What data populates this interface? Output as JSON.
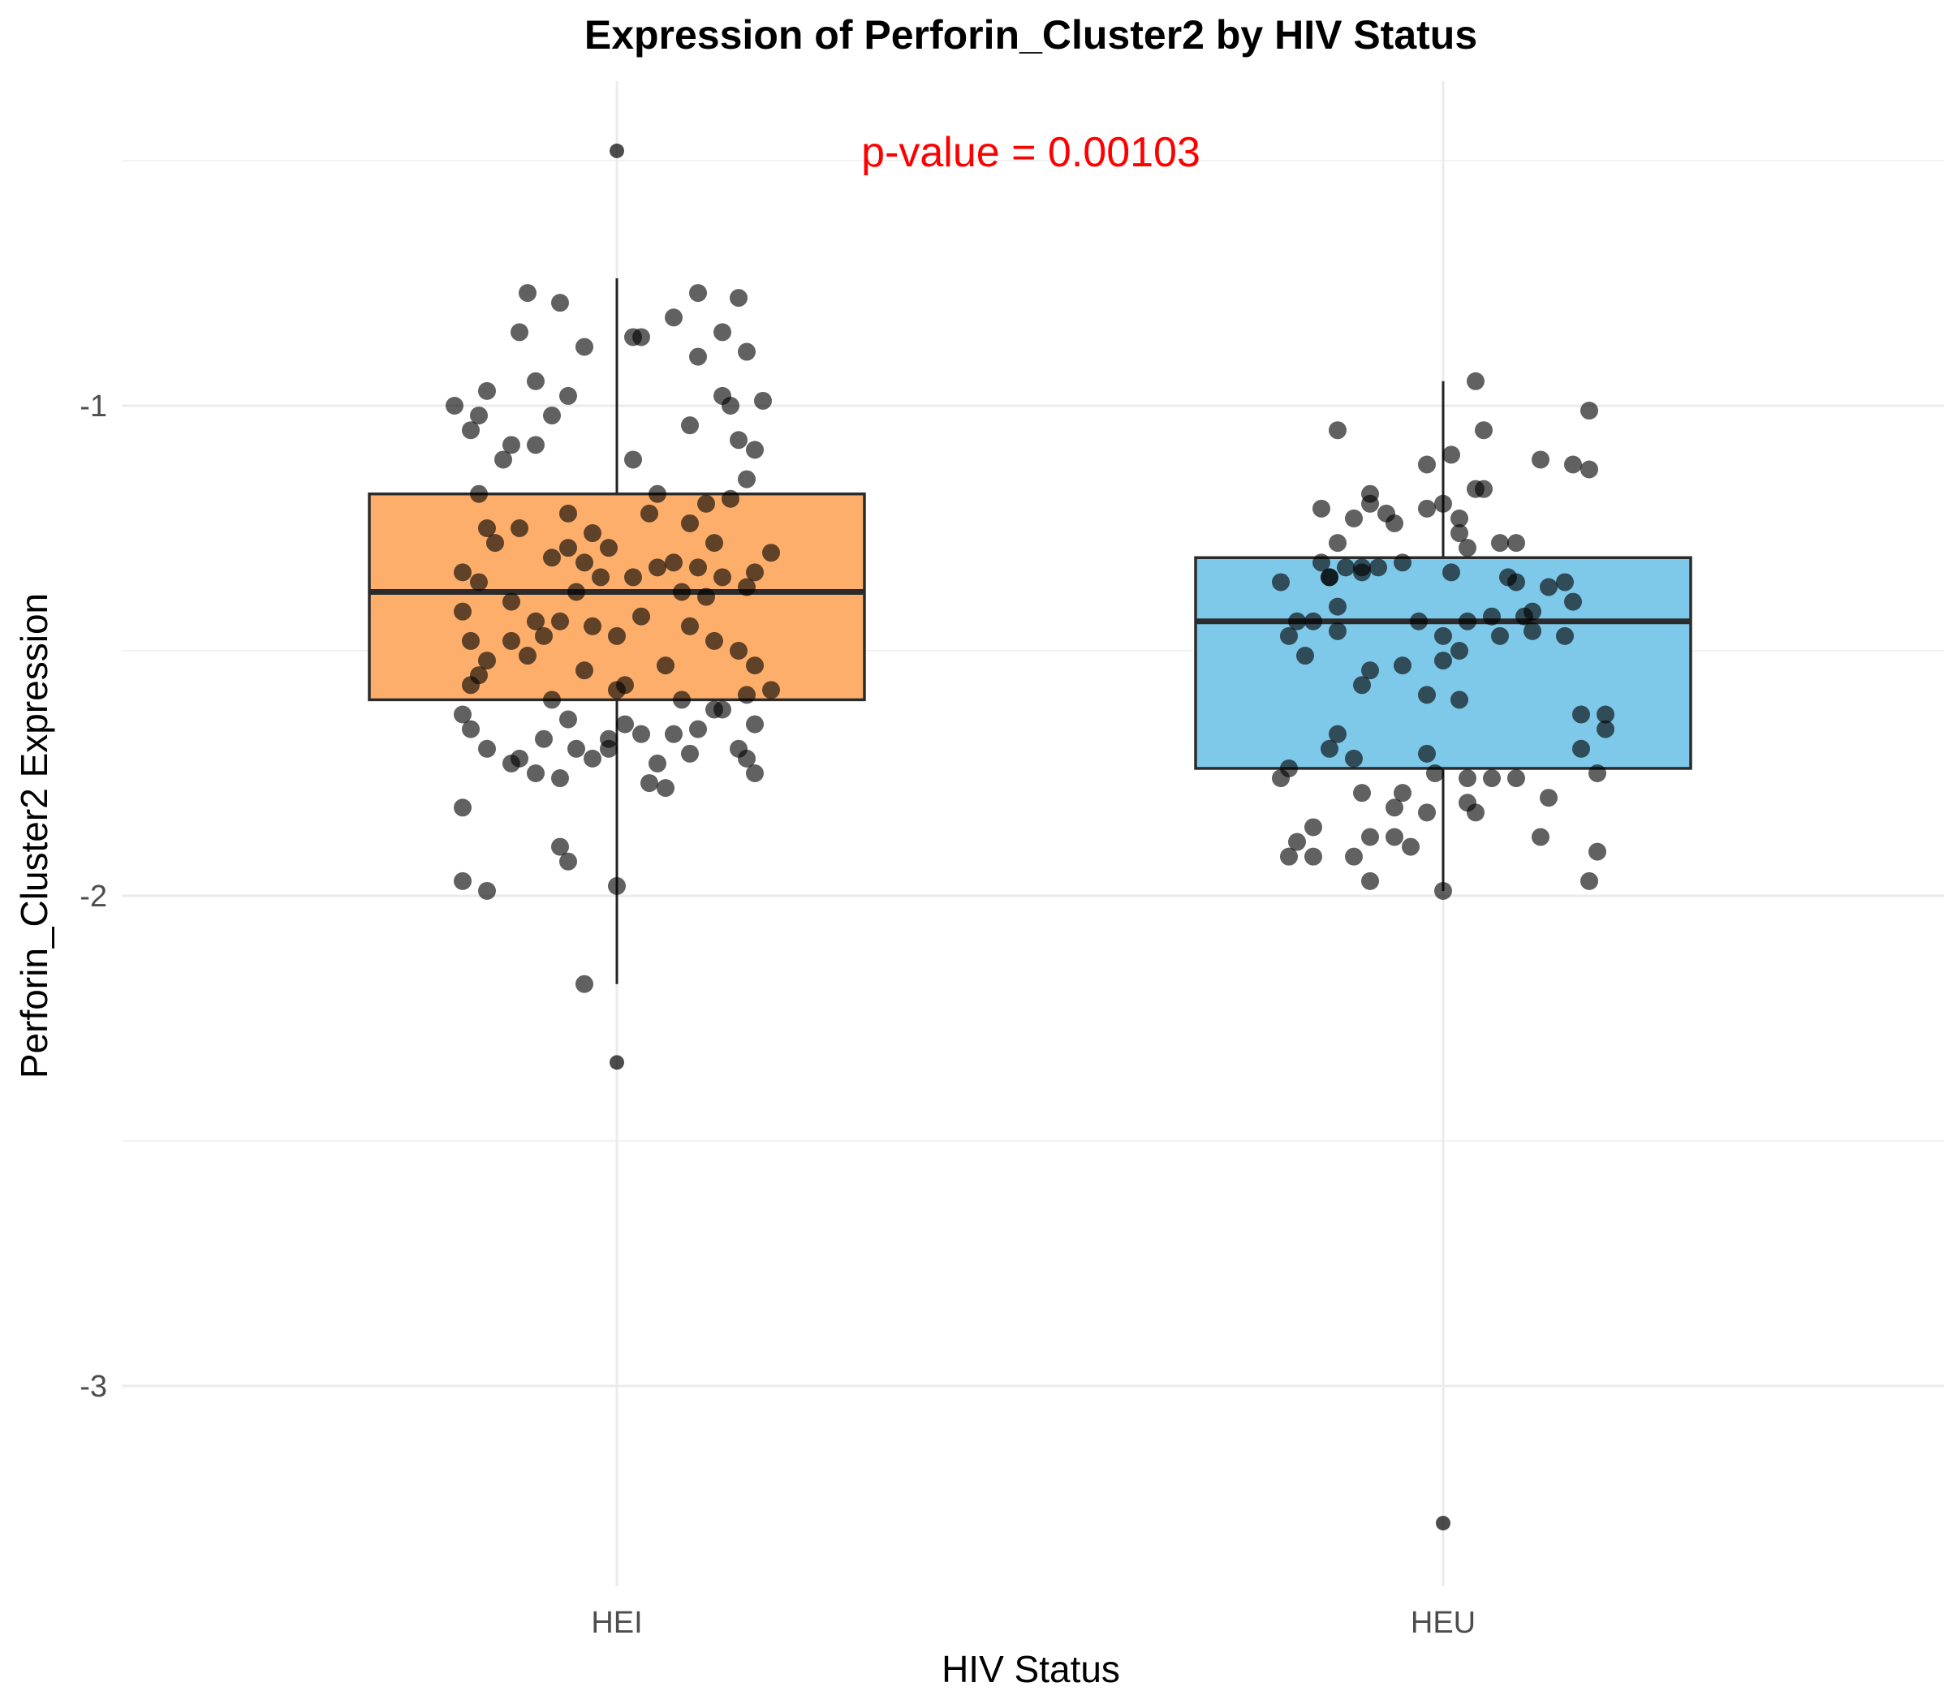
{
  "chart_data": {
    "type": "box",
    "title": "Expression of Perforin_Cluster2 by HIV Status",
    "xlabel": "HIV Status",
    "ylabel": "Perforin_Cluster2 Expression",
    "annotation": {
      "text": "p-value = 0.00103",
      "color": "#ff0000"
    },
    "categories": [
      "HEI",
      "HEU"
    ],
    "ylim": [
      -3.4,
      -0.42
    ],
    "yticks": [
      -3,
      -2,
      -1
    ],
    "ytick_labels": [
      "-3",
      "-2",
      "-1"
    ],
    "y_minor_gridlines": [
      -2.5,
      -1.5,
      -0.5
    ],
    "grid": true,
    "legend": "none",
    "series": [
      {
        "category": "HEI",
        "fill": "#fdae6b",
        "stats": {
          "whisker_low": -2.18,
          "q1": -1.6,
          "median": -1.38,
          "q3": -1.18,
          "whisker_high": -0.74
        },
        "outliers": [
          -0.48,
          -2.34
        ],
        "points": [
          [
            -0.2,
            -1.0
          ],
          [
            -0.18,
            -1.05
          ],
          [
            -0.16,
            -0.97
          ],
          [
            -0.12,
            -0.85
          ],
          [
            -0.11,
            -0.77
          ],
          [
            -0.07,
            -0.79
          ],
          [
            -0.04,
            -0.88
          ],
          [
            -0.1,
            -0.95
          ],
          [
            -0.06,
            -0.98
          ],
          [
            -0.08,
            -1.02
          ],
          [
            -0.13,
            -1.08
          ],
          [
            -0.14,
            -1.11
          ],
          [
            -0.17,
            -1.02
          ],
          [
            -0.1,
            -1.08
          ],
          [
            0.02,
            -0.86
          ],
          [
            0.03,
            -0.86
          ],
          [
            0.07,
            -0.82
          ],
          [
            0.1,
            -0.9
          ],
          [
            0.1,
            -0.77
          ],
          [
            0.15,
            -0.78
          ],
          [
            0.13,
            -0.85
          ],
          [
            0.16,
            -0.89
          ],
          [
            0.18,
            -0.99
          ],
          [
            0.13,
            -0.98
          ],
          [
            0.09,
            -1.04
          ],
          [
            0.14,
            -1.0
          ],
          [
            0.15,
            -1.07
          ],
          [
            0.17,
            -1.09
          ],
          [
            0.16,
            -1.15
          ],
          [
            0.02,
            -1.11
          ],
          [
            0.05,
            -1.18
          ],
          [
            -0.17,
            -1.18
          ],
          [
            -0.16,
            -1.25
          ],
          [
            -0.12,
            -1.25
          ],
          [
            -0.06,
            -1.22
          ],
          [
            -0.03,
            -1.26
          ],
          [
            0.04,
            -1.22
          ],
          [
            0.11,
            -1.2
          ],
          [
            0.14,
            -1.19
          ],
          [
            0.09,
            -1.24
          ],
          [
            0.12,
            -1.28
          ],
          [
            -0.19,
            -1.34
          ],
          [
            -0.19,
            -1.42
          ],
          [
            -0.17,
            -1.36
          ],
          [
            -0.15,
            -1.28
          ],
          [
            -0.13,
            -1.4
          ],
          [
            -0.1,
            -1.44
          ],
          [
            -0.08,
            -1.31
          ],
          [
            -0.06,
            -1.29
          ],
          [
            -0.05,
            -1.38
          ],
          [
            -0.04,
            -1.32
          ],
          [
            -0.02,
            -1.35
          ],
          [
            -0.01,
            -1.29
          ],
          [
            0.02,
            -1.35
          ],
          [
            0.05,
            -1.33
          ],
          [
            0.07,
            -1.32
          ],
          [
            0.08,
            -1.38
          ],
          [
            0.1,
            -1.33
          ],
          [
            0.11,
            -1.39
          ],
          [
            0.13,
            -1.35
          ],
          [
            0.16,
            -1.37
          ],
          [
            0.17,
            -1.34
          ],
          [
            0.19,
            -1.3
          ],
          [
            -0.18,
            -1.48
          ],
          [
            -0.16,
            -1.52
          ],
          [
            -0.13,
            -1.48
          ],
          [
            -0.11,
            -1.51
          ],
          [
            -0.09,
            -1.47
          ],
          [
            -0.07,
            -1.44
          ],
          [
            -0.03,
            -1.45
          ],
          [
            0.0,
            -1.47
          ],
          [
            0.03,
            -1.43
          ],
          [
            0.06,
            -1.53
          ],
          [
            0.09,
            -1.45
          ],
          [
            0.12,
            -1.48
          ],
          [
            0.15,
            -1.5
          ],
          [
            0.17,
            -1.53
          ],
          [
            -0.18,
            -1.57
          ],
          [
            -0.17,
            -1.55
          ],
          [
            -0.08,
            -1.6
          ],
          [
            -0.04,
            -1.54
          ],
          [
            0.0,
            -1.58
          ],
          [
            0.01,
            -1.57
          ],
          [
            0.08,
            -1.6
          ],
          [
            0.12,
            -1.62
          ],
          [
            0.16,
            -1.59
          ],
          [
            0.19,
            -1.58
          ],
          [
            -0.19,
            -1.63
          ],
          [
            -0.18,
            -1.66
          ],
          [
            -0.16,
            -1.7
          ],
          [
            -0.12,
            -1.72
          ],
          [
            -0.09,
            -1.68
          ],
          [
            -0.06,
            -1.64
          ],
          [
            -0.03,
            -1.72
          ],
          [
            -0.01,
            -1.68
          ],
          [
            0.01,
            -1.65
          ],
          [
            0.03,
            -1.67
          ],
          [
            0.05,
            -1.73
          ],
          [
            0.07,
            -1.67
          ],
          [
            0.1,
            -1.66
          ],
          [
            0.13,
            -1.62
          ],
          [
            0.15,
            -1.7
          ],
          [
            0.17,
            -1.65
          ],
          [
            -0.19,
            -1.82
          ],
          [
            -0.07,
            -1.9
          ],
          [
            -0.06,
            -1.93
          ],
          [
            0.0,
            -1.98
          ],
          [
            -0.19,
            -1.97
          ],
          [
            -0.16,
            -1.99
          ],
          [
            -0.04,
            -2.18
          ],
          [
            -0.13,
            -1.73
          ],
          [
            -0.05,
            -1.7
          ],
          [
            0.04,
            -1.77
          ],
          [
            0.06,
            -1.78
          ],
          [
            0.09,
            -1.71
          ],
          [
            0.16,
            -1.72
          ],
          [
            0.17,
            -1.75
          ],
          [
            -0.1,
            -1.75
          ],
          [
            -0.07,
            -1.76
          ],
          [
            -0.01,
            -1.7
          ]
        ]
      },
      {
        "category": "HEU",
        "fill": "#7ec8e9",
        "stats": {
          "whisker_low": -1.99,
          "q1": -1.74,
          "median": -1.44,
          "q3": -1.31,
          "whisker_high": -0.95
        },
        "outliers": [
          -3.28
        ],
        "points": [
          [
            0.04,
            -0.95
          ],
          [
            0.18,
            -1.01
          ],
          [
            -0.13,
            -1.05
          ],
          [
            0.05,
            -1.05
          ],
          [
            0.01,
            -1.1
          ],
          [
            0.12,
            -1.11
          ],
          [
            0.16,
            -1.12
          ],
          [
            0.18,
            -1.13
          ],
          [
            -0.02,
            -1.12
          ],
          [
            0.05,
            -1.17
          ],
          [
            0.04,
            -1.17
          ],
          [
            -0.09,
            -1.18
          ],
          [
            -0.15,
            -1.21
          ],
          [
            -0.09,
            -1.2
          ],
          [
            -0.07,
            -1.22
          ],
          [
            -0.11,
            -1.23
          ],
          [
            -0.06,
            -1.24
          ],
          [
            0.0,
            -1.2
          ],
          [
            0.02,
            -1.23
          ],
          [
            -0.02,
            -1.21
          ],
          [
            0.02,
            -1.26
          ],
          [
            0.03,
            -1.29
          ],
          [
            0.07,
            -1.28
          ],
          [
            0.09,
            -1.28
          ],
          [
            -0.13,
            -1.28
          ],
          [
            -0.15,
            -1.32
          ],
          [
            -0.14,
            -1.35
          ],
          [
            -0.12,
            -1.33
          ],
          [
            -0.1,
            -1.33
          ],
          [
            -0.08,
            -1.33
          ],
          [
            -0.05,
            -1.32
          ],
          [
            0.01,
            -1.34
          ],
          [
            -0.2,
            -1.36
          ],
          [
            -0.18,
            -1.44
          ],
          [
            -0.16,
            -1.44
          ],
          [
            -0.14,
            -1.35
          ],
          [
            -0.13,
            -1.41
          ],
          [
            -0.1,
            -1.34
          ],
          [
            -0.03,
            -1.44
          ],
          [
            0.0,
            -1.47
          ],
          [
            0.03,
            -1.44
          ],
          [
            0.06,
            -1.43
          ],
          [
            0.08,
            -1.35
          ],
          [
            0.09,
            -1.36
          ],
          [
            0.1,
            -1.43
          ],
          [
            0.11,
            -1.42
          ],
          [
            0.13,
            -1.37
          ],
          [
            0.15,
            -1.36
          ],
          [
            0.16,
            -1.4
          ],
          [
            -0.19,
            -1.47
          ],
          [
            -0.17,
            -1.51
          ],
          [
            -0.13,
            -1.46
          ],
          [
            -0.09,
            -1.54
          ],
          [
            -0.05,
            -1.53
          ],
          [
            0.0,
            -1.52
          ],
          [
            0.02,
            -1.5
          ],
          [
            0.07,
            -1.47
          ],
          [
            0.11,
            -1.46
          ],
          [
            0.15,
            -1.47
          ],
          [
            -0.1,
            -1.57
          ],
          [
            -0.02,
            -1.59
          ],
          [
            0.02,
            -1.6
          ],
          [
            0.17,
            -1.63
          ],
          [
            0.2,
            -1.63
          ],
          [
            -0.14,
            -1.7
          ],
          [
            -0.13,
            -1.67
          ],
          [
            -0.11,
            -1.72
          ],
          [
            -0.02,
            -1.71
          ],
          [
            0.17,
            -1.7
          ],
          [
            0.2,
            -1.66
          ],
          [
            -0.2,
            -1.76
          ],
          [
            -0.19,
            -1.74
          ],
          [
            -0.1,
            -1.79
          ],
          [
            -0.05,
            -1.79
          ],
          [
            -0.01,
            -1.75
          ],
          [
            0.03,
            -1.76
          ],
          [
            0.04,
            -1.83
          ],
          [
            0.06,
            -1.76
          ],
          [
            0.09,
            -1.76
          ],
          [
            0.13,
            -1.8
          ],
          [
            0.19,
            -1.75
          ],
          [
            -0.16,
            -1.86
          ],
          [
            -0.18,
            -1.89
          ],
          [
            -0.19,
            -1.92
          ],
          [
            -0.16,
            -1.92
          ],
          [
            -0.11,
            -1.92
          ],
          [
            -0.09,
            -1.88
          ],
          [
            -0.06,
            -1.82
          ],
          [
            -0.04,
            -1.9
          ],
          [
            -0.06,
            -1.88
          ],
          [
            -0.09,
            -1.97
          ],
          [
            0.0,
            -1.99
          ],
          [
            0.03,
            -1.81
          ],
          [
            0.12,
            -1.88
          ],
          [
            0.19,
            -1.91
          ],
          [
            0.18,
            -1.97
          ],
          [
            -0.02,
            -1.83
          ]
        ]
      }
    ]
  }
}
